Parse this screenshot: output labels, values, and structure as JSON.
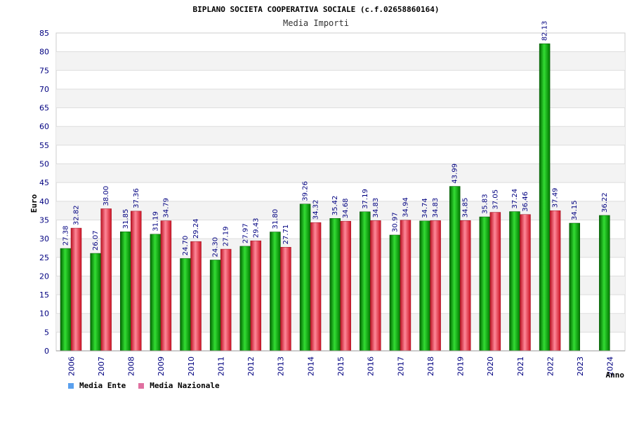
{
  "chart_data": {
    "type": "bar",
    "title": "BIPLANO SOCIETA COOPERATIVA SOCIALE (c.f.02658860164)",
    "subtitle": "Media Importi",
    "ylabel": "Euro",
    "xlabel": "Anno",
    "ylim": [
      0,
      85
    ],
    "ytick_step": 5,
    "grid": true,
    "legend_position": "bottom-left",
    "categories": [
      "2006",
      "2007",
      "2008",
      "2009",
      "2010",
      "2011",
      "2012",
      "2013",
      "2014",
      "2015",
      "2016",
      "2017",
      "2018",
      "2019",
      "2020",
      "2021",
      "2022",
      "2023",
      "2024"
    ],
    "series": [
      {
        "name": "Media Ente",
        "color": "#00aa00",
        "legend_color": "#5aa0ee",
        "values": [
          27.38,
          26.07,
          31.85,
          31.19,
          24.7,
          24.3,
          27.97,
          31.8,
          39.26,
          35.42,
          37.19,
          30.97,
          34.74,
          43.99,
          35.83,
          37.24,
          82.13,
          34.15,
          36.22
        ],
        "labels": [
          "27.38",
          "26.07",
          "31.85",
          "31.19",
          "24.70",
          "24.30",
          "27.97",
          "31.80",
          "39.26",
          "35.42",
          "37.19",
          "30.97",
          "34.74",
          "43.99",
          "35.83",
          "37.24",
          "82.13",
          "34.15",
          "36.22"
        ]
      },
      {
        "name": "Media Nazionale",
        "color": "#dd2233",
        "legend_color": "#e070a0",
        "values": [
          32.82,
          38.0,
          37.36,
          34.79,
          29.24,
          27.19,
          29.43,
          27.71,
          34.32,
          34.68,
          34.83,
          34.94,
          34.83,
          34.85,
          37.05,
          36.46,
          37.49,
          null,
          null
        ],
        "labels": [
          "32.82",
          "38.00",
          "37.36",
          "34.79",
          "29.24",
          "27.19",
          "29.43",
          "27.71",
          "34.32",
          "34.68",
          "34.83",
          "34.94",
          "34.83",
          "34.85",
          "37.05",
          "36.46",
          "37.49",
          "",
          ""
        ]
      }
    ]
  }
}
